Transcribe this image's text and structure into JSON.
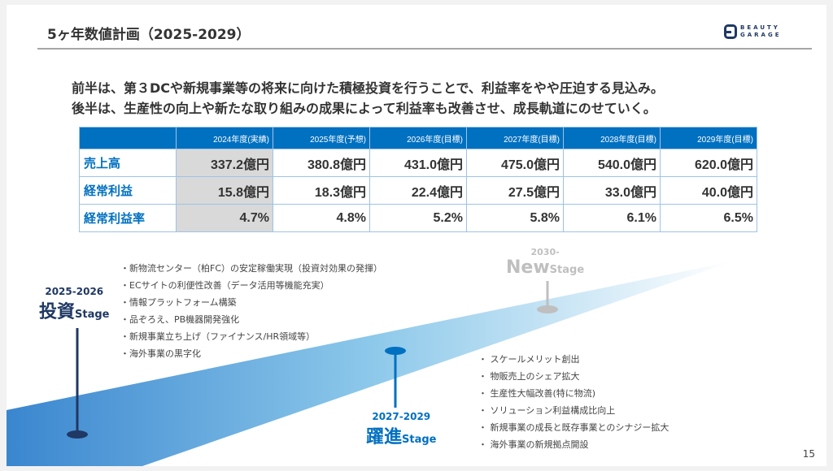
{
  "header": {
    "title": "5ヶ年数値計画（2025-2029）",
    "logo_text": [
      "BEAUTY",
      "GARAGE"
    ]
  },
  "lead": [
    "前半は、第３DCや新規事業等の将来に向けた積極投資を行うことで、利益率をやや圧迫する見込み。",
    "後半は、生産性の向上や新たな取り組みの成果によって利益率も改善させ、成長軌道にのせていく。"
  ],
  "table": {
    "columns": [
      "2024年度(実績)",
      "2025年度(予想)",
      "2026年度(目標)",
      "2027年度(目標)",
      "2028年度(目標)",
      "2029年度(目標)"
    ],
    "rows": [
      {
        "label": "売上高",
        "values": [
          "337.2億円",
          "380.8億円",
          "431.0億円",
          "475.0億円",
          "540.0億円",
          "620.0億円"
        ]
      },
      {
        "label": "経常利益",
        "values": [
          "15.8億円",
          "18.3億円",
          "22.4億円",
          "27.5億円",
          "33.0億円",
          "40.0億円"
        ]
      },
      {
        "label": "経常利益率",
        "values": [
          "4.7%",
          "4.8%",
          "5.2%",
          "5.8%",
          "6.1%",
          "6.5%"
        ]
      }
    ]
  },
  "stages": {
    "invest": {
      "years": "2025-2026",
      "name": "投資",
      "suffix": "Stage",
      "color": "#1f3864",
      "bullets": [
        "・新物流センター（柏FC）の安定稼働実現（投資対効果の発揮）",
        "・ECサイトの利便性改善（データ活用等機能充実）",
        "・情報プラットフォーム構築",
        "・品ぞろえ、PB機器開発強化",
        "・新規事業立ち上げ（ファイナンス/HR領域等）",
        "・海外事業の黒字化"
      ]
    },
    "leap": {
      "years": "2027-2029",
      "name": "躍進",
      "suffix": "Stage",
      "color": "#0070c0",
      "bullets": [
        "・ スケールメリット創出",
        "・ 物販売上のシェア拡大",
        "・ 生産性大幅改善(特に物流)",
        "・ ソリューション利益構成比向上",
        "・ 新規事業の成長と既存事業とのシナジー拡大",
        "・ 海外事業の新規拠点開設"
      ]
    },
    "new": {
      "years": "2030-",
      "name": "New",
      "suffix": "Stage",
      "color": "#c0c0c0"
    }
  },
  "page_number": "15"
}
